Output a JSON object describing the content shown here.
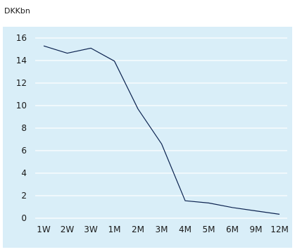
{
  "chart_data": {
    "type": "line",
    "title": "",
    "unit_label": "DKKbn",
    "xlabel": "",
    "ylabel": "",
    "categories": [
      "1W",
      "2W",
      "3W",
      "1M",
      "2M",
      "3M",
      "4M",
      "5M",
      "6M",
      "9M",
      "12M"
    ],
    "series": [
      {
        "values": [
          15.3,
          14.65,
          15.1,
          13.95,
          9.7,
          6.6,
          1.55,
          1.35,
          0.95,
          0.65,
          0.35
        ]
      }
    ],
    "y_ticks": [
      0,
      2,
      4,
      6,
      8,
      10,
      12,
      14,
      16
    ],
    "ylim": [
      0,
      16
    ],
    "grid": true,
    "legend": "none",
    "colors": {
      "plot_background": "#d9eef8",
      "gridline": "#ffffff",
      "line": "#0c2350",
      "text": "#1a1a1a"
    }
  }
}
